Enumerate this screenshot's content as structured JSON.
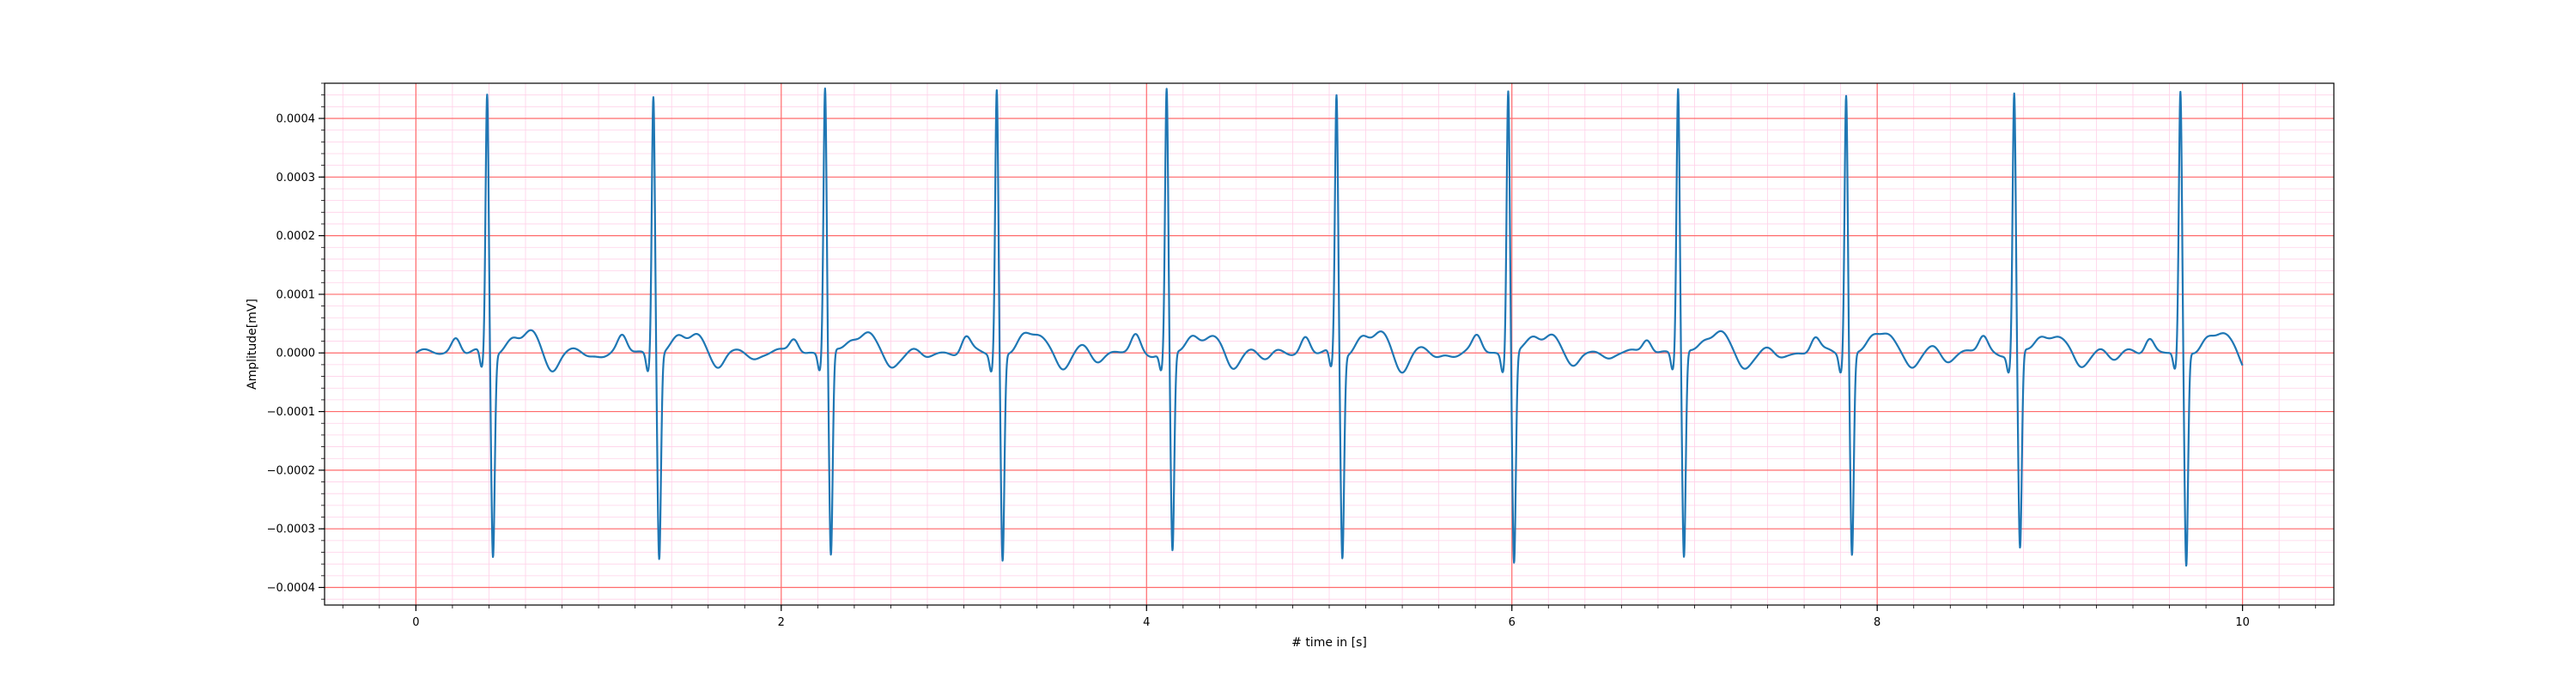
{
  "chart_data": {
    "type": "line",
    "title": "",
    "xlabel": "# time in [s]",
    "ylabel": "Amplitude[mV]",
    "xlim": [
      -0.5,
      10.5
    ],
    "ylim": [
      -0.00043,
      0.00046
    ],
    "x_ticks": [
      0,
      2,
      4,
      6,
      8,
      10
    ],
    "x_tick_labels": [
      "0",
      "2",
      "4",
      "6",
      "8",
      "10"
    ],
    "y_ticks": [
      0.0004,
      0.0003,
      0.0002,
      0.0001,
      0.0,
      -0.0001,
      -0.0002,
      -0.0003,
      -0.0004
    ],
    "y_tick_labels": [
      "0.0004",
      "0.0003",
      "0.0002",
      "0.0001",
      "0.0000",
      "−0.0001",
      "−0.0002",
      "−0.0003",
      "−0.0004"
    ],
    "grid": true,
    "grid_major_color": "#ff6b6b",
    "grid_minor_color": "#ffd1e8",
    "line_color": "#1f77b4",
    "duration_s": 10.0,
    "beats": [
      {
        "r_time": 0.39,
        "r_peak": 0.000412,
        "s_trough": -0.000365
      },
      {
        "r_time": 1.3,
        "r_peak": 0.000414,
        "s_trough": -0.000367
      },
      {
        "r_time": 2.24,
        "r_peak": 0.000421,
        "s_trough": -0.00037
      },
      {
        "r_time": 3.18,
        "r_peak": 0.000421,
        "s_trough": -0.000374
      },
      {
        "r_time": 4.11,
        "r_peak": 0.000418,
        "s_trough": -0.000361
      },
      {
        "r_time": 5.04,
        "r_peak": 0.000409,
        "s_trough": -0.000367
      },
      {
        "r_time": 5.98,
        "r_peak": 0.000423,
        "s_trough": -0.000377
      },
      {
        "r_time": 6.91,
        "r_peak": 0.00042,
        "s_trough": -0.000372
      },
      {
        "r_time": 7.83,
        "r_peak": 0.000414,
        "s_trough": -0.000364
      },
      {
        "r_time": 8.75,
        "r_peak": 0.000412,
        "s_trough": -0.000359
      },
      {
        "r_time": 9.66,
        "r_peak": 0.000412,
        "s_trough": -0.000387
      }
    ]
  }
}
